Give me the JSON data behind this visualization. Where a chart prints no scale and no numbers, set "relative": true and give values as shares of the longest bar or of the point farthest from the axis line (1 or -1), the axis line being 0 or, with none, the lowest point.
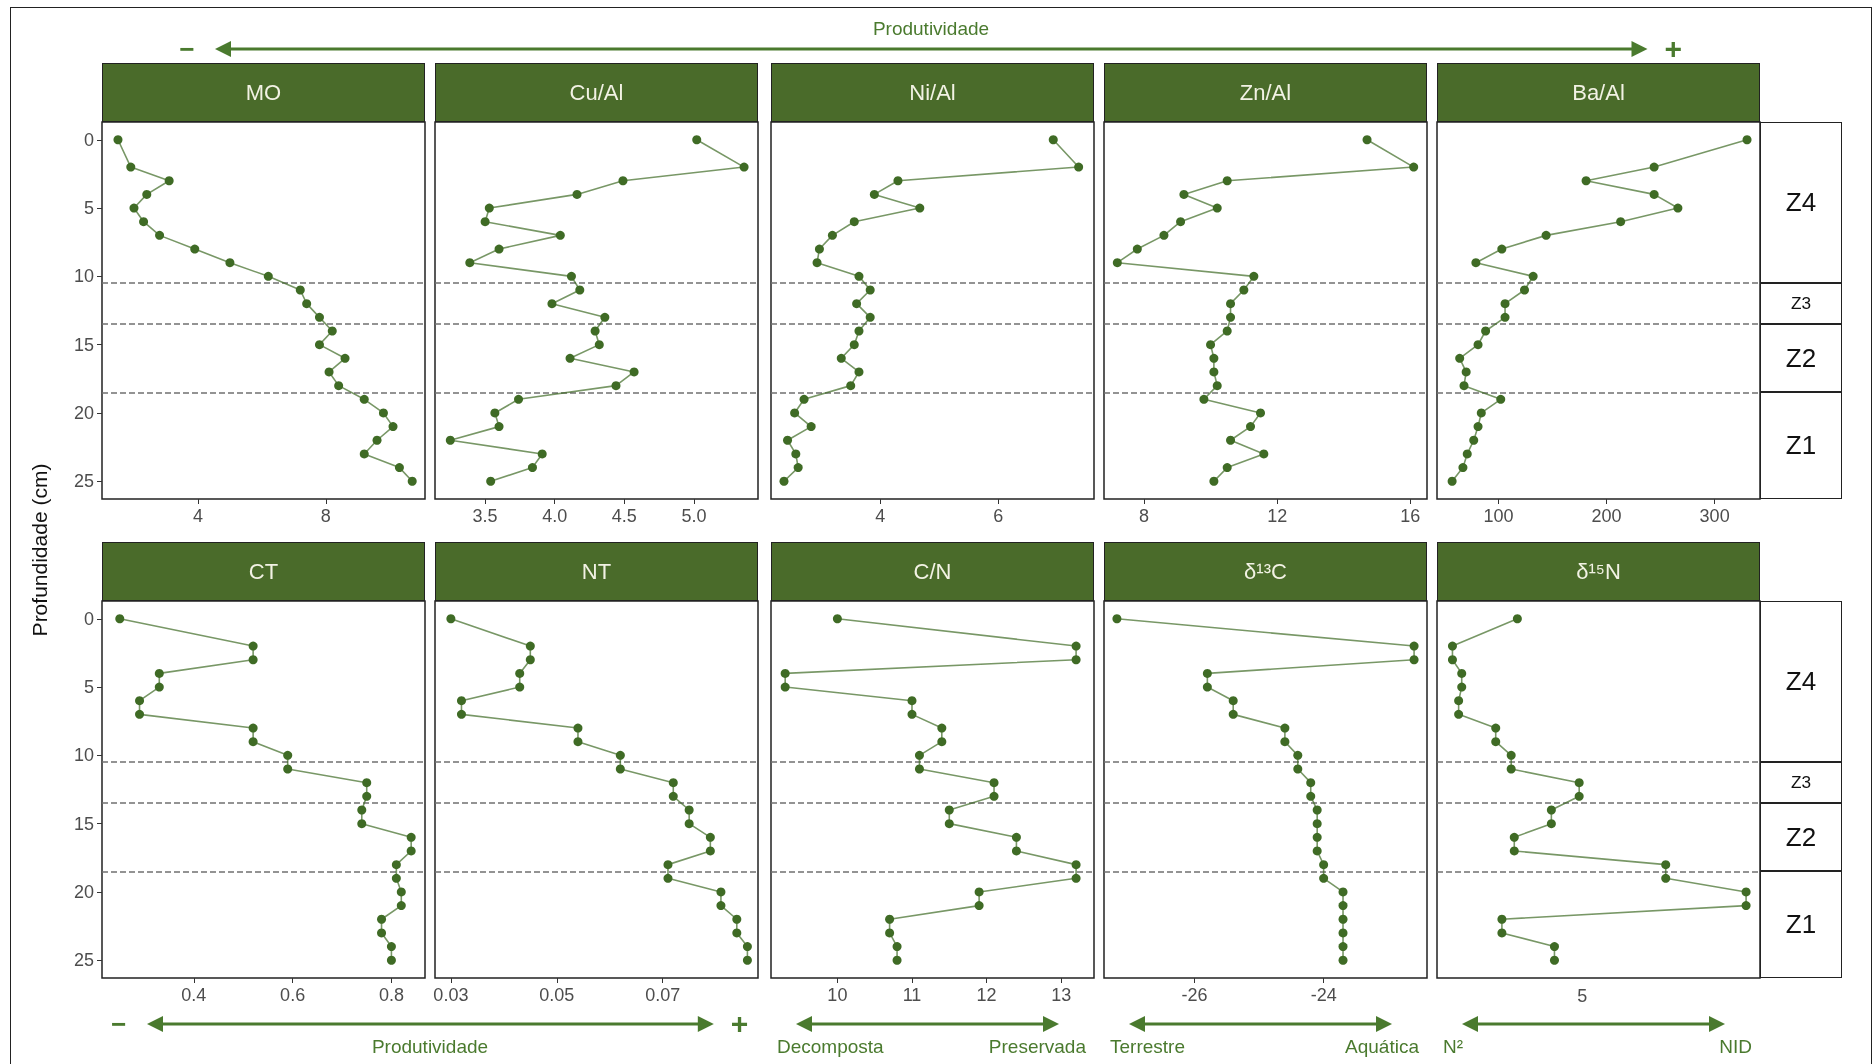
{
  "chart_data": [
    {
      "type": "line",
      "title": "MO",
      "ylabel": "Profundidade (cm)",
      "orientation": "horizontal",
      "marker": "circle",
      "color": "#3f6b25",
      "x": [
        0,
        2,
        3,
        4,
        5,
        6,
        7,
        8,
        9,
        10,
        11,
        12,
        13,
        14,
        15,
        16,
        17,
        18,
        19,
        20,
        21,
        22,
        23,
        24,
        25
      ],
      "values": [
        1.5,
        1.9,
        3.1,
        2.4,
        2.0,
        2.3,
        2.8,
        3.9,
        5.0,
        6.2,
        7.2,
        7.4,
        7.8,
        8.2,
        7.8,
        8.6,
        8.1,
        8.4,
        9.2,
        9.8,
        10.1,
        9.6,
        9.2,
        10.3,
        10.7
      ],
      "xlim": [
        1,
        11.1
      ],
      "xticks": [
        4,
        8
      ],
      "ylim": [
        26.3,
        -1.3
      ],
      "yticks": [
        0,
        5,
        10,
        15,
        20,
        25
      ],
      "ref_lines": [
        {
          "axis": "y",
          "value": 10.5,
          "line_style": "dashed",
          "color": "#707070"
        },
        {
          "axis": "y",
          "value": 13.5,
          "line_style": "dashed",
          "color": "#707070"
        },
        {
          "axis": "y",
          "value": 18.5,
          "line_style": "dashed",
          "color": "#707070"
        }
      ],
      "annotations": [
        "−",
        "Produtividade",
        "+"
      ]
    },
    {
      "type": "line",
      "title": "Cu/Al",
      "orientation": "horizontal",
      "marker": "circle",
      "color": "#3f6b25",
      "tick_labels": "x",
      "x": [
        0,
        2,
        3,
        4,
        5,
        6,
        7,
        8,
        9,
        10,
        11,
        12,
        13,
        14,
        15,
        16,
        17,
        18,
        19,
        20,
        21,
        22,
        23,
        24,
        25
      ],
      "values": [
        5.02,
        5.36,
        4.49,
        4.16,
        3.53,
        3.5,
        4.04,
        3.6,
        3.39,
        4.12,
        4.18,
        3.98,
        4.36,
        4.29,
        4.32,
        4.11,
        4.57,
        4.44,
        3.74,
        3.57,
        3.6,
        3.25,
        3.91,
        3.84,
        3.54
      ],
      "xlim": [
        3.14,
        5.46
      ],
      "xticks": [
        3.5,
        {
          "value": 4,
          "label": "4.0"
        },
        4.5,
        {
          "value": 5,
          "label": "5.0"
        }
      ],
      "ylim": [
        26.3,
        -1.3
      ],
      "yticks": [
        0,
        5,
        10,
        15,
        20,
        25
      ],
      "ref_lines": [
        {
          "axis": "y",
          "value": 10.5,
          "line_style": "dashed",
          "color": "#707070"
        },
        {
          "axis": "y",
          "value": 13.5,
          "line_style": "dashed",
          "color": "#707070"
        },
        {
          "axis": "y",
          "value": 18.5,
          "line_style": "dashed",
          "color": "#707070"
        }
      ]
    },
    {
      "type": "line",
      "title": "Ni/Al",
      "orientation": "horizontal",
      "marker": "circle",
      "color": "#3f6b25",
      "tick_labels": "x",
      "x": [
        0,
        2,
        3,
        4,
        5,
        6,
        7,
        8,
        9,
        10,
        11,
        12,
        13,
        14,
        15,
        16,
        17,
        18,
        19,
        20,
        21,
        22,
        23,
        24,
        25
      ],
      "values": [
        6.93,
        7.36,
        4.3,
        3.9,
        4.67,
        3.56,
        3.19,
        2.97,
        2.93,
        3.64,
        3.83,
        3.6,
        3.83,
        3.64,
        3.56,
        3.34,
        3.64,
        3.5,
        2.71,
        2.55,
        2.83,
        2.43,
        2.57,
        2.61,
        2.37
      ],
      "xlim": [
        2.15,
        7.62
      ],
      "xticks": [
        4,
        6
      ],
      "ylim": [
        26.3,
        -1.3
      ],
      "yticks": [
        0,
        5,
        10,
        15,
        20,
        25
      ],
      "ref_lines": [
        {
          "axis": "y",
          "value": 10.5,
          "line_style": "dashed",
          "color": "#707070"
        },
        {
          "axis": "y",
          "value": 13.5,
          "line_style": "dashed",
          "color": "#707070"
        },
        {
          "axis": "y",
          "value": 18.5,
          "line_style": "dashed",
          "color": "#707070"
        }
      ]
    },
    {
      "type": "line",
      "title": "Zn/Al",
      "orientation": "horizontal",
      "marker": "circle",
      "color": "#3f6b25",
      "tick_labels": "x",
      "x": [
        0,
        2,
        3,
        4,
        5,
        6,
        7,
        8,
        9,
        10,
        11,
        12,
        13,
        14,
        15,
        16,
        17,
        18,
        19,
        20,
        21,
        22,
        23,
        24,
        25
      ],
      "values": [
        14.7,
        16.1,
        10.5,
        9.2,
        10.2,
        9.1,
        8.6,
        7.8,
        7.2,
        11.3,
        11.0,
        10.6,
        10.6,
        10.5,
        10.0,
        10.1,
        10.1,
        10.2,
        9.8,
        11.5,
        11.2,
        10.6,
        11.6,
        10.5,
        10.1
      ],
      "xlim": [
        6.8,
        16.5
      ],
      "xticks": [
        8,
        12,
        16
      ],
      "ylim": [
        26.3,
        -1.3
      ],
      "yticks": [
        0,
        5,
        10,
        15,
        20,
        25
      ],
      "ref_lines": [
        {
          "axis": "y",
          "value": 10.5,
          "line_style": "dashed",
          "color": "#707070"
        },
        {
          "axis": "y",
          "value": 13.5,
          "line_style": "dashed",
          "color": "#707070"
        },
        {
          "axis": "y",
          "value": 18.5,
          "line_style": "dashed",
          "color": "#707070"
        }
      ]
    },
    {
      "type": "line",
      "title": "Ba/Al",
      "orientation": "horizontal",
      "marker": "circle",
      "color": "#3f6b25",
      "tick_labels": "x",
      "x": [
        0,
        2,
        3,
        4,
        5,
        6,
        7,
        8,
        9,
        10,
        11,
        12,
        13,
        14,
        15,
        16,
        17,
        18,
        19,
        20,
        21,
        22,
        23,
        24,
        25
      ],
      "values": [
        330,
        244,
        181,
        244,
        266,
        213,
        144,
        103,
        79,
        132,
        124,
        106,
        106,
        88,
        81,
        64,
        70,
        68,
        102,
        84,
        81,
        77,
        71,
        67,
        57
      ],
      "xlim": [
        43,
        342
      ],
      "xticks": [
        100,
        200,
        300
      ],
      "ylim": [
        26.3,
        -1.3
      ],
      "yticks": [
        0,
        5,
        10,
        15,
        20,
        25
      ],
      "ref_lines": [
        {
          "axis": "y",
          "value": 10.5,
          "line_style": "dashed",
          "color": "#707070"
        },
        {
          "axis": "y",
          "value": 13.5,
          "line_style": "dashed",
          "color": "#707070"
        },
        {
          "axis": "y",
          "value": 18.5,
          "line_style": "dashed",
          "color": "#707070"
        }
      ],
      "annotations": [
        "Z4",
        "Z3",
        "Z2",
        "Z1"
      ]
    },
    {
      "type": "line",
      "title": "CT",
      "orientation": "horizontal",
      "marker": "circle",
      "color": "#3f6b25",
      "x": [
        0,
        2,
        3,
        4,
        5,
        6,
        7,
        8,
        9,
        10,
        11,
        12,
        13,
        14,
        15,
        16,
        17,
        18,
        19,
        20,
        21,
        22,
        23,
        24,
        25
      ],
      "values": [
        0.25,
        0.52,
        0.52,
        0.33,
        0.33,
        0.29,
        0.29,
        0.52,
        0.52,
        0.59,
        0.59,
        0.75,
        0.75,
        0.74,
        0.74,
        0.84,
        0.84,
        0.81,
        0.81,
        0.82,
        0.82,
        0.78,
        0.78,
        0.8,
        0.8
      ],
      "xlim": [
        0.214,
        0.868
      ],
      "xticks": [
        0.4,
        0.6,
        0.8
      ],
      "ylim": [
        26.3,
        -1.3
      ],
      "yticks": [
        0,
        5,
        10,
        15,
        20,
        25
      ],
      "ref_lines": [
        {
          "axis": "y",
          "value": 10.5,
          "line_style": "dashed",
          "color": "#707070"
        },
        {
          "axis": "y",
          "value": 13.5,
          "line_style": "dashed",
          "color": "#707070"
        },
        {
          "axis": "y",
          "value": 18.5,
          "line_style": "dashed",
          "color": "#707070"
        }
      ],
      "annotations": [
        "−",
        "Produtividade",
        "+"
      ]
    },
    {
      "type": "line",
      "title": "NT",
      "orientation": "horizontal",
      "marker": "circle",
      "color": "#3f6b25",
      "tick_labels": "x",
      "x": [
        0,
        2,
        3,
        4,
        5,
        6,
        7,
        8,
        9,
        10,
        11,
        12,
        13,
        14,
        15,
        16,
        17,
        18,
        19,
        20,
        21,
        22,
        23,
        24,
        25
      ],
      "values": [
        0.03,
        0.045,
        0.045,
        0.043,
        0.043,
        0.032,
        0.032,
        0.054,
        0.054,
        0.062,
        0.062,
        0.072,
        0.072,
        0.075,
        0.075,
        0.079,
        0.079,
        0.071,
        0.071,
        0.081,
        0.081,
        0.084,
        0.084,
        0.086,
        0.086
      ],
      "xlim": [
        0.027,
        0.088
      ],
      "xticks": [
        0.03,
        0.05,
        0.07
      ],
      "ylim": [
        26.3,
        -1.3
      ],
      "yticks": [
        0,
        5,
        10,
        15,
        20,
        25
      ],
      "ref_lines": [
        {
          "axis": "y",
          "value": 10.5,
          "line_style": "dashed",
          "color": "#707070"
        },
        {
          "axis": "y",
          "value": 13.5,
          "line_style": "dashed",
          "color": "#707070"
        },
        {
          "axis": "y",
          "value": 18.5,
          "line_style": "dashed",
          "color": "#707070"
        }
      ]
    },
    {
      "type": "line",
      "title": "C/N",
      "orientation": "horizontal",
      "marker": "circle",
      "color": "#3f6b25",
      "tick_labels": "x",
      "x": [
        0,
        2,
        3,
        4,
        5,
        6,
        7,
        8,
        9,
        10,
        11,
        12,
        13,
        14,
        15,
        16,
        17,
        18,
        19,
        20,
        21,
        22,
        23,
        24,
        25
      ],
      "values": [
        10.0,
        13.2,
        13.2,
        9.3,
        9.3,
        11.0,
        11.0,
        11.4,
        11.4,
        11.1,
        11.1,
        12.1,
        12.1,
        11.5,
        11.5,
        12.4,
        12.4,
        13.2,
        13.2,
        11.9,
        11.9,
        10.7,
        10.7,
        10.8,
        10.8
      ],
      "xlim": [
        9.11,
        13.44
      ],
      "xticks": [
        10,
        11,
        12,
        13
      ],
      "ylim": [
        26.3,
        -1.3
      ],
      "yticks": [
        0,
        5,
        10,
        15,
        20,
        25
      ],
      "ref_lines": [
        {
          "axis": "y",
          "value": 10.5,
          "line_style": "dashed",
          "color": "#707070"
        },
        {
          "axis": "y",
          "value": 13.5,
          "line_style": "dashed",
          "color": "#707070"
        },
        {
          "axis": "y",
          "value": 18.5,
          "line_style": "dashed",
          "color": "#707070"
        }
      ],
      "annotations": [
        "Decomposta",
        "Preservada"
      ]
    },
    {
      "type": "line",
      "title": "δ¹³C",
      "orientation": "horizontal",
      "marker": "circle",
      "color": "#3f6b25",
      "tick_labels": "x",
      "x": [
        0,
        2,
        3,
        4,
        5,
        6,
        7,
        8,
        9,
        10,
        11,
        12,
        13,
        14,
        15,
        16,
        17,
        18,
        19,
        20,
        21,
        22,
        23,
        24,
        25
      ],
      "values": [
        -27.2,
        -22.6,
        -22.6,
        -25.8,
        -25.8,
        -25.4,
        -25.4,
        -24.6,
        -24.6,
        -24.4,
        -24.4,
        -24.2,
        -24.2,
        -24.1,
        -24.1,
        -24.1,
        -24.1,
        -24.0,
        -24.0,
        -23.7,
        -23.7,
        -23.7,
        -23.7,
        -23.7,
        -23.7
      ],
      "xlim": [
        -27.4,
        -22.4
      ],
      "xticks": [
        -26,
        -24
      ],
      "ylim": [
        26.3,
        -1.3
      ],
      "yticks": [
        0,
        5,
        10,
        15,
        20,
        25
      ],
      "ref_lines": [
        {
          "axis": "y",
          "value": 10.5,
          "line_style": "dashed",
          "color": "#707070"
        },
        {
          "axis": "y",
          "value": 13.5,
          "line_style": "dashed",
          "color": "#707070"
        },
        {
          "axis": "y",
          "value": 18.5,
          "line_style": "dashed",
          "color": "#707070"
        }
      ],
      "annotations": [
        "Terrestre",
        "Aquática"
      ]
    },
    {
      "type": "line",
      "title": "δ¹⁵N",
      "orientation": "horizontal",
      "marker": "circle",
      "color": "#3f6b25",
      "tick_labels": "x",
      "relative": true,
      "x": [
        0,
        2,
        3,
        4,
        5,
        6,
        7,
        8,
        9,
        10,
        11,
        12,
        13,
        14,
        15,
        16,
        17,
        18,
        19,
        20,
        21,
        22,
        23,
        24,
        25
      ],
      "values": [
        0.26,
        0.05,
        0.05,
        0.08,
        0.08,
        0.07,
        0.07,
        0.19,
        0.19,
        0.24,
        0.24,
        0.46,
        0.46,
        0.37,
        0.37,
        0.25,
        0.25,
        0.74,
        0.74,
        1,
        1,
        0.21,
        0.21,
        0.38,
        0.38
      ],
      "ylim": [
        26.3,
        -1.3
      ],
      "yticks": [
        0,
        5,
        10,
        15,
        20,
        25
      ],
      "ref_lines": [
        {
          "axis": "y",
          "value": 10.5,
          "line_style": "dashed",
          "color": "#707070"
        },
        {
          "axis": "y",
          "value": 13.5,
          "line_style": "dashed",
          "color": "#707070"
        },
        {
          "axis": "y",
          "value": 18.5,
          "line_style": "dashed",
          "color": "#707070"
        }
      ],
      "annotations": [
        "5",
        "N²",
        "NID",
        "Z4",
        "Z3",
        "Z2",
        "Z1"
      ]
    }
  ]
}
